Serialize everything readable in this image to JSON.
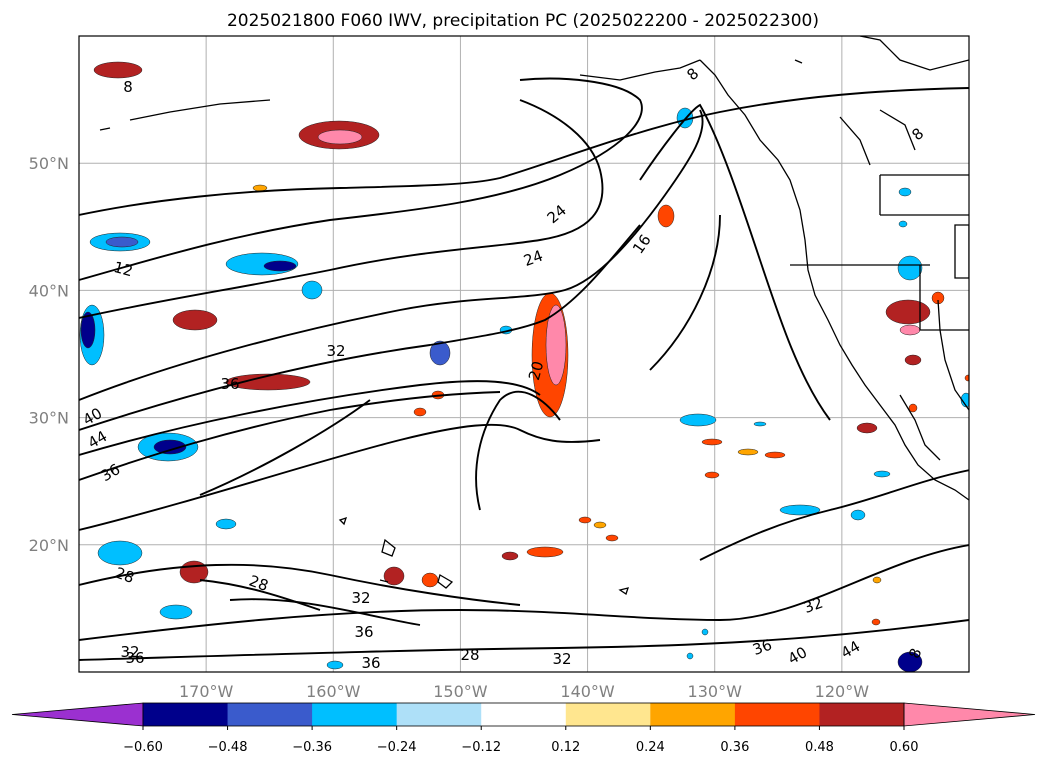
{
  "chart_data": {
    "type": "map-contour",
    "title": "2025021800 F060 IWV, precipitation PC (2025022200 - 2025022300)",
    "latitude_ticks": [
      "50°N",
      "40°N",
      "30°N",
      "20°N"
    ],
    "longitude_ticks": [
      "170°W",
      "160°W",
      "150°W",
      "140°W",
      "130°W",
      "120°W"
    ],
    "lat_range": [
      10,
      60
    ],
    "lon_range": [
      -180,
      -110
    ],
    "grid": true,
    "colorbar": {
      "orientation": "horizontal",
      "placement": "bottom",
      "extend": "both",
      "tick_labels": [
        "−0.60",
        "−0.48",
        "−0.36",
        "−0.24",
        "−0.12",
        "0.12",
        "0.24",
        "0.36",
        "0.48",
        "0.60"
      ],
      "colors": [
        "#9b30d0",
        "#00008b",
        "#3a5bcc",
        "#00bfff",
        "#aee0f8",
        "#ffffff",
        "#ffe68f",
        "#ffa500",
        "#ff4500",
        "#b22222",
        "#ff88aa"
      ]
    },
    "contour_labels": [
      "8",
      "8",
      "8",
      "12",
      "16",
      "20",
      "24",
      "24",
      "28",
      "28",
      "28",
      "32",
      "32",
      "32",
      "32",
      "32",
      "36",
      "36",
      "36",
      "36",
      "36",
      "36",
      "40",
      "40",
      "44",
      "44",
      "8"
    ]
  }
}
